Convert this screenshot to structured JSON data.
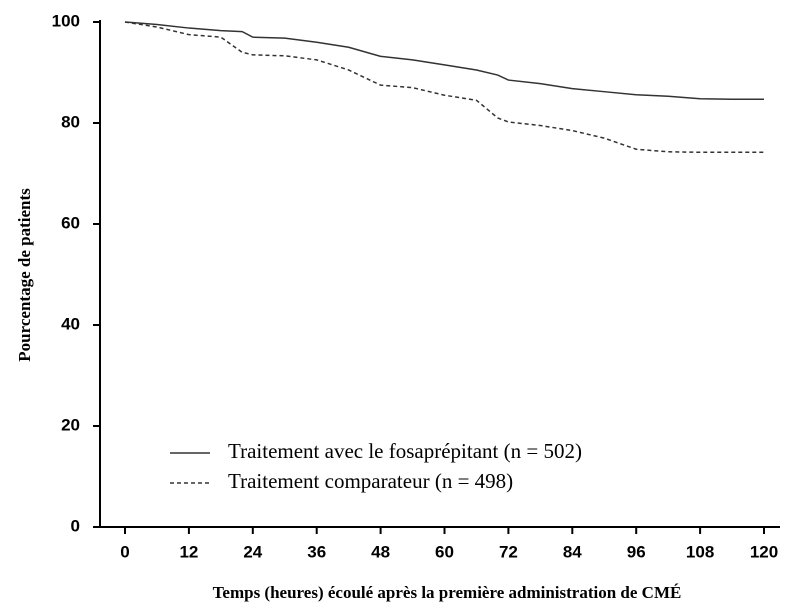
{
  "chart_data": {
    "type": "line",
    "x_label": "Temps (heures) écoulé après la première administration de CMÉ",
    "y_label": "Pourcentage de patients",
    "x": [
      0,
      6,
      12,
      18,
      22,
      24,
      30,
      36,
      42,
      48,
      54,
      60,
      66,
      70,
      72,
      78,
      84,
      90,
      96,
      102,
      108,
      114,
      120
    ],
    "series": [
      {
        "name": "Traitement avec le fosaprépitant (n = 502)",
        "color": "#333333",
        "dash": "solid",
        "values": [
          100,
          99.5,
          98.8,
          98.3,
          98.1,
          97,
          96.8,
          96,
          95,
          93.2,
          92.5,
          91.5,
          90.5,
          89.5,
          88.5,
          87.8,
          86.8,
          86.2,
          85.6,
          85.3,
          84.8,
          84.7,
          84.7
        ]
      },
      {
        "name": "Traitement comparateur (n = 498)",
        "color": "#333333",
        "dash": "dashed",
        "values": [
          100,
          99,
          97.5,
          97,
          94,
          93.5,
          93.3,
          92.5,
          90.5,
          87.5,
          87,
          85.5,
          84.5,
          81,
          80.2,
          79.5,
          78.5,
          77,
          74.8,
          74.3,
          74.2,
          74.2,
          74.2
        ]
      }
    ],
    "xlim": [
      0,
      120
    ],
    "xticks": [
      0,
      12,
      24,
      36,
      48,
      60,
      72,
      84,
      96,
      108,
      120
    ],
    "ylim": [
      0,
      100
    ],
    "yticks": [
      0,
      20,
      40,
      60,
      80,
      100
    ],
    "legend": "lower left"
  }
}
